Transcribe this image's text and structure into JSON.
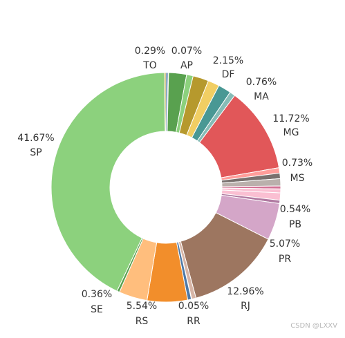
{
  "chart_data": {
    "type": "pie",
    "donut": true,
    "slices": [
      {
        "label": "TO",
        "value": 0.29,
        "pct": "0.29%",
        "color": "#4e79a7",
        "shown": true
      },
      {
        "label": "AP",
        "value": 0.07,
        "pct": "0.07%",
        "color": "#a0cbe8",
        "shown": true
      },
      {
        "label": "",
        "value": 2.46,
        "pct": "",
        "color": "#59a14f",
        "shown": false
      },
      {
        "label": "",
        "value": 0.9,
        "pct": "",
        "color": "#8cd17d",
        "shown": false
      },
      {
        "label": "DF",
        "value": 2.15,
        "pct": "2.15%",
        "color": "#b6992d",
        "shown": true
      },
      {
        "label": "",
        "value": 1.58,
        "pct": "",
        "color": "#f1ce63",
        "shown": false
      },
      {
        "label": "",
        "value": 1.76,
        "pct": "",
        "color": "#499894",
        "shown": false
      },
      {
        "label": "MA",
        "value": 0.76,
        "pct": "0.76%",
        "color": "#86bcb6",
        "shown": true
      },
      {
        "label": "MG",
        "value": 11.72,
        "pct": "11.72%",
        "color": "#e15759",
        "shown": true
      },
      {
        "label": "MS",
        "value": 0.73,
        "pct": "0.73%",
        "color": "#ff9d9a",
        "shown": true
      },
      {
        "label": "",
        "value": 0.75,
        "pct": "",
        "color": "#79706e",
        "shown": false
      },
      {
        "label": "",
        "value": 1.0,
        "pct": "",
        "color": "#bab0ac",
        "shown": false
      },
      {
        "label": "",
        "value": 0.4,
        "pct": "",
        "color": "#d37295",
        "shown": false
      },
      {
        "label": "PB",
        "value": 0.54,
        "pct": "0.54%",
        "color": "#fabfd2",
        "shown": true
      },
      {
        "label": "",
        "value": 1.0,
        "pct": "",
        "color": "#fabfd2",
        "shown": false
      },
      {
        "label": "",
        "value": 0.45,
        "pct": "",
        "color": "#b07aa1",
        "shown": false
      },
      {
        "label": "PR",
        "value": 5.07,
        "pct": "5.07%",
        "color": "#d4a6c8",
        "shown": true
      },
      {
        "label": "RJ",
        "value": 12.96,
        "pct": "12.96%",
        "color": "#9d7660",
        "shown": true
      },
      {
        "label": "",
        "value": 0.6,
        "pct": "",
        "color": "#d7b5a6",
        "shown": false
      },
      {
        "label": "RR",
        "value": 0.05,
        "pct": "0.05%",
        "color": "#a0cbe8",
        "shown": true
      },
      {
        "label": "",
        "value": 0.5,
        "pct": "",
        "color": "#4e79a7",
        "shown": false
      },
      {
        "label": "RS",
        "value": 5.54,
        "pct": "5.54%",
        "color": "#f28e2b",
        "shown": true
      },
      {
        "label": "",
        "value": 3.9,
        "pct": "",
        "color": "#ffbe7d",
        "shown": false
      },
      {
        "label": "SE",
        "value": 0.36,
        "pct": "0.36%",
        "color": "#59a14f",
        "shown": true
      },
      {
        "label": "SP",
        "value": 41.67,
        "pct": "41.67%",
        "color": "#8cd17d",
        "shown": true
      },
      {
        "label": "",
        "value": 0.2,
        "pct": "",
        "color": "#b6992d",
        "shown": false
      }
    ]
  },
  "watermark": "CSDN @LXXV"
}
